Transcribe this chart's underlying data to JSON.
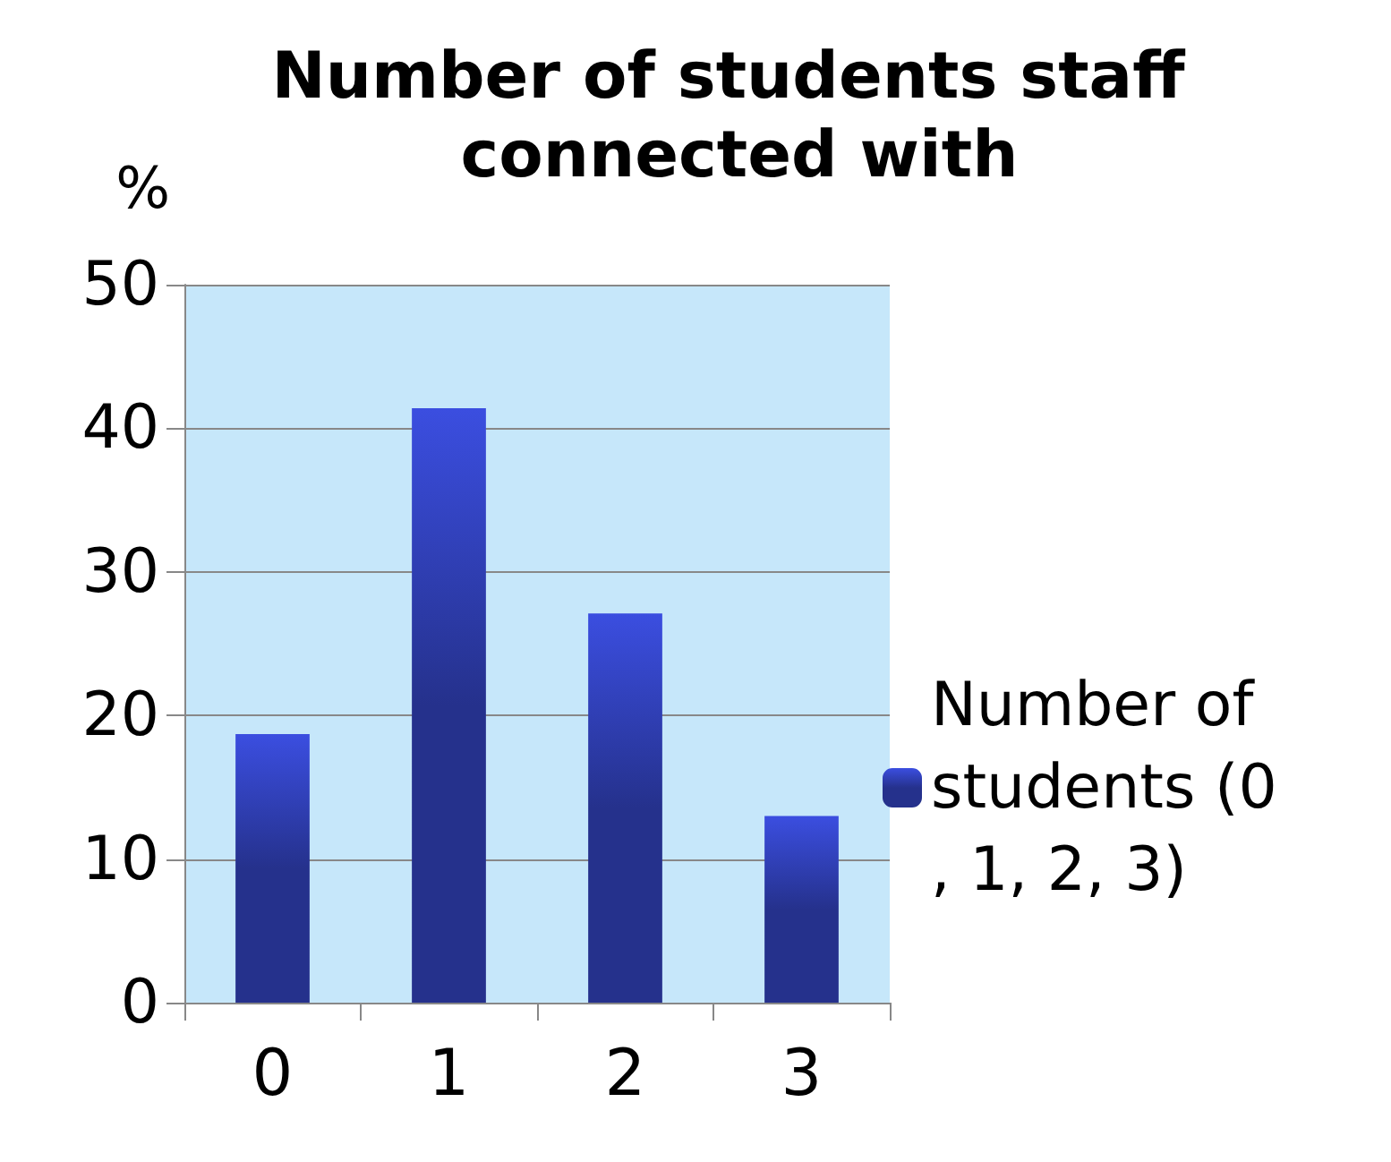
{
  "chart_data": {
    "type": "bar",
    "title": "Number of students staff connected with",
    "ylabel": "%",
    "categories": [
      "0",
      "1",
      "2",
      "3"
    ],
    "series": [
      {
        "name": "Number of students (0, 1, 2, 3)",
        "color": "#25318c",
        "values": [
          18.7,
          41.4,
          27.1,
          13.0
        ]
      }
    ],
    "ylim": [
      0,
      50
    ],
    "yticks": [
      0,
      10,
      20,
      30,
      40,
      50
    ],
    "grid": "y",
    "legend": "right"
  }
}
